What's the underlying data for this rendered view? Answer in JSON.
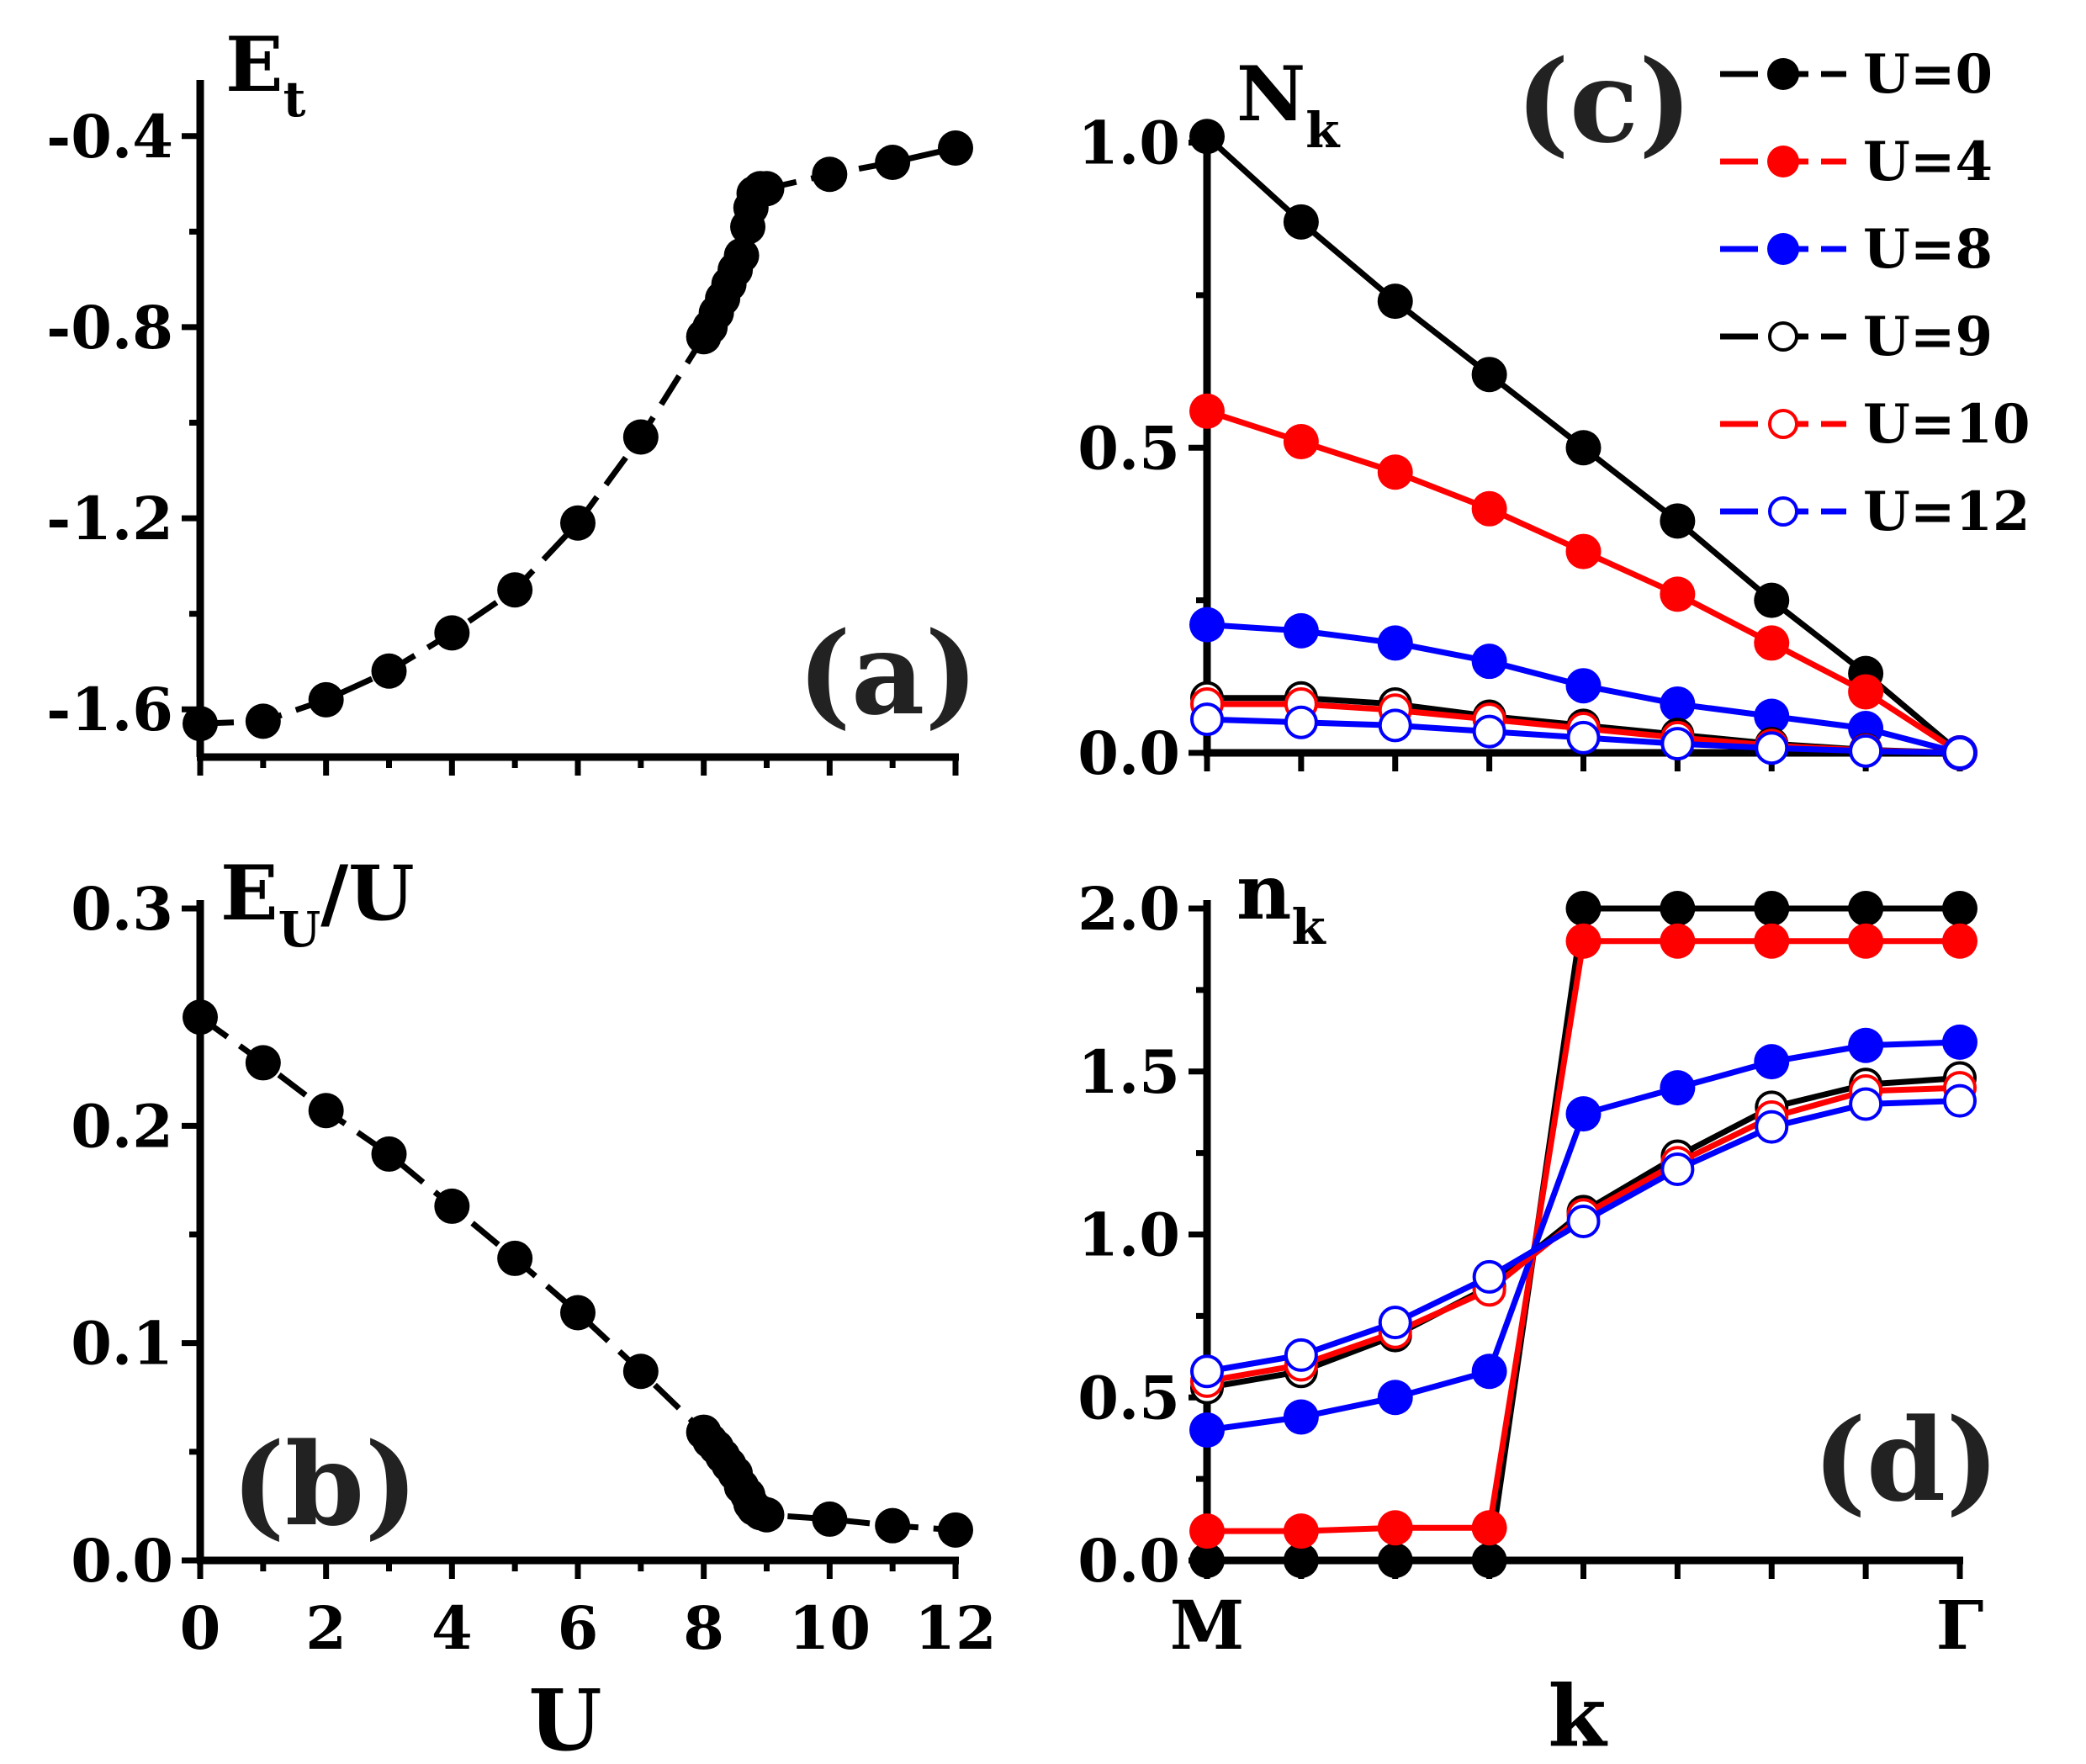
{
  "chart_data": [
    {
      "id": "a",
      "type": "line",
      "panel_label": "(a)",
      "ylabel_main": "E",
      "ylabel_sub": "t",
      "ylabel_after": "",
      "xlim": [
        0,
        12
      ],
      "ylim": [
        -1.7,
        -0.3
      ],
      "yticks": [
        -0.4,
        -0.8,
        -1.2,
        -1.6
      ],
      "ytick_labels": [
        "-0.4",
        "-0.8",
        "-1.2",
        "-1.6"
      ],
      "series": [
        {
          "name": "E_t",
          "x": [
            0,
            1,
            2,
            3,
            4,
            5,
            6,
            7,
            8,
            8.1,
            8.2,
            8.3,
            8.4,
            8.5,
            8.6,
            8.7,
            8.75,
            8.8,
            8.9,
            9,
            10,
            11,
            12
          ],
          "y": [
            -1.63,
            -1.625,
            -1.58,
            -1.52,
            -1.44,
            -1.35,
            -1.21,
            -1.03,
            -0.82,
            -0.8,
            -0.77,
            -0.74,
            -0.71,
            -0.68,
            -0.65,
            -0.59,
            -0.55,
            -0.52,
            -0.51,
            -0.51,
            -0.48,
            -0.455,
            -0.425
          ]
        }
      ]
    },
    {
      "id": "b",
      "type": "line",
      "panel_label": "(b)",
      "ylabel_main": "E",
      "ylabel_sub": "U",
      "ylabel_after": "/U",
      "xlim": [
        0,
        12
      ],
      "ylim": [
        0,
        0.3
      ],
      "yticks": [
        0.3,
        0.2,
        0.1,
        0.0
      ],
      "ytick_labels": [
        "0.3",
        "0.2",
        "0.1",
        "0.0"
      ],
      "xticks": [
        0,
        2,
        4,
        6,
        8,
        10,
        12
      ],
      "xtick_labels": [
        "0",
        "2",
        "4",
        "6",
        "8",
        "10",
        "12"
      ],
      "xlabel": "U",
      "series": [
        {
          "name": "E_U/U",
          "x": [
            0,
            1,
            2,
            3,
            4,
            5,
            6,
            7,
            8,
            8.1,
            8.2,
            8.3,
            8.4,
            8.5,
            8.6,
            8.7,
            8.75,
            8.8,
            8.9,
            9,
            10,
            11,
            12
          ],
          "y": [
            0.25,
            0.229,
            0.207,
            0.187,
            0.163,
            0.139,
            0.114,
            0.087,
            0.059,
            0.055,
            0.052,
            0.048,
            0.044,
            0.04,
            0.034,
            0.03,
            0.026,
            0.024,
            0.022,
            0.021,
            0.019,
            0.016,
            0.014
          ]
        }
      ]
    },
    {
      "id": "c",
      "type": "line",
      "panel_label": "(c)",
      "ylabel_main": "N",
      "ylabel_sub": "k",
      "ylabel_after": "",
      "xlim": [
        0,
        8
      ],
      "ylim": [
        0,
        1.02
      ],
      "yticks": [
        1.0,
        0.5,
        0.0
      ],
      "ytick_labels": [
        "1.0",
        "0.5",
        "0.0"
      ],
      "series": [
        {
          "name": "U=0",
          "color": "#000000",
          "filled": true,
          "y": [
            1.01,
            0.87,
            0.74,
            0.62,
            0.5,
            0.38,
            0.25,
            0.13,
            0.0
          ]
        },
        {
          "name": "U=4",
          "color": "#ff0000",
          "filled": true,
          "y": [
            0.56,
            0.51,
            0.46,
            0.4,
            0.33,
            0.26,
            0.18,
            0.1,
            0.0
          ]
        },
        {
          "name": "U=8",
          "color": "#0000ff",
          "filled": true,
          "y": [
            0.21,
            0.2,
            0.18,
            0.15,
            0.11,
            0.08,
            0.06,
            0.04,
            0.0
          ]
        },
        {
          "name": "U=9",
          "color": "#000000",
          "filled": false,
          "y": [
            0.09,
            0.09,
            0.08,
            0.06,
            0.045,
            0.03,
            0.015,
            0.005,
            0.0
          ]
        },
        {
          "name": "U=10",
          "color": "#ff0000",
          "filled": false,
          "y": [
            0.08,
            0.08,
            0.07,
            0.055,
            0.04,
            0.025,
            0.012,
            0.004,
            0.0
          ]
        },
        {
          "name": "U=12",
          "color": "#0000ff",
          "filled": false,
          "y": [
            0.055,
            0.05,
            0.045,
            0.035,
            0.025,
            0.015,
            0.008,
            0.003,
            0.0
          ]
        }
      ]
    },
    {
      "id": "d",
      "type": "line",
      "panel_label": "(d)",
      "ylabel_main": "n",
      "ylabel_sub": "k",
      "ylabel_after": "",
      "xlim": [
        0,
        8
      ],
      "ylim": [
        0,
        2.0
      ],
      "yticks": [
        2.0,
        1.5,
        1.0,
        0.5,
        0.0
      ],
      "ytick_labels": [
        "2.0",
        "1.5",
        "1.0",
        "0.5",
        "0.0"
      ],
      "xtick_labels_text": [
        "M",
        "Γ"
      ],
      "xlabel": "k",
      "series": [
        {
          "name": "U=0",
          "color": "#000000",
          "filled": true,
          "y": [
            0.0,
            0.0,
            0.0,
            0.0,
            2.0,
            2.0,
            2.0,
            2.0,
            2.0
          ]
        },
        {
          "name": "U=4",
          "color": "#ff0000",
          "filled": true,
          "y": [
            0.09,
            0.09,
            0.1,
            0.1,
            1.9,
            1.9,
            1.9,
            1.9,
            1.9
          ]
        },
        {
          "name": "U=8",
          "color": "#0000ff",
          "filled": true,
          "y": [
            0.4,
            0.44,
            0.5,
            0.58,
            1.37,
            1.45,
            1.53,
            1.58,
            1.59
          ]
        },
        {
          "name": "U=9",
          "color": "#000000",
          "filled": false,
          "y": [
            0.53,
            0.58,
            0.69,
            0.84,
            1.07,
            1.24,
            1.39,
            1.46,
            1.48
          ]
        },
        {
          "name": "U=10",
          "color": "#ff0000",
          "filled": false,
          "y": [
            0.55,
            0.6,
            0.7,
            0.83,
            1.06,
            1.22,
            1.36,
            1.44,
            1.45
          ]
        },
        {
          "name": "U=12",
          "color": "#0000ff",
          "filled": false,
          "y": [
            0.58,
            0.63,
            0.73,
            0.87,
            1.04,
            1.2,
            1.33,
            1.4,
            1.41
          ]
        }
      ]
    }
  ],
  "legend": {
    "location": "top-right",
    "entries": [
      "U=0",
      "U=4",
      "U=8",
      "U=9",
      "U=10",
      "U=12"
    ]
  }
}
